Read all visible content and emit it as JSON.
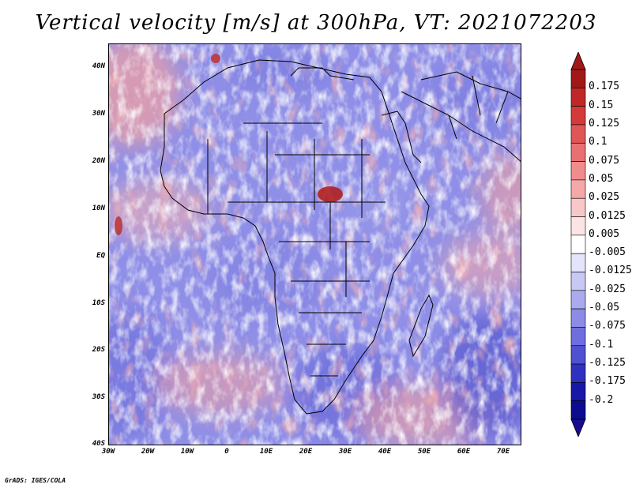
{
  "title": "Vertical velocity [m/s] at 300hPa, VT: 2021072203",
  "footer": "GrADS: IGES/COLA",
  "map": {
    "region": "Africa",
    "lon_range": [
      -30,
      75
    ],
    "lat_range": [
      -40,
      45
    ],
    "lat_labels": [
      "40N",
      "30N",
      "20N",
      "10N",
      "EQ",
      "10S",
      "20S",
      "30S",
      "40S"
    ],
    "lat_values": [
      40,
      30,
      20,
      10,
      0,
      -10,
      -20,
      -30,
      -40
    ],
    "lon_labels": [
      "30W",
      "20W",
      "10W",
      "0",
      "10E",
      "20E",
      "30E",
      "40E",
      "50E",
      "60E",
      "70E"
    ],
    "lon_values": [
      -30,
      -20,
      -10,
      0,
      10,
      20,
      30,
      40,
      50,
      60,
      70
    ]
  },
  "colorbar": {
    "labels": [
      "0.175",
      "0.15",
      "0.125",
      "0.1",
      "0.075",
      "0.05",
      "0.025",
      "0.0125",
      "0.005",
      "-0.005",
      "-0.0125",
      "-0.025",
      "-0.05",
      "-0.075",
      "-0.1",
      "-0.125",
      "-0.175",
      "-0.2"
    ],
    "colors": [
      "#a01818",
      "#c02828",
      "#d43a3a",
      "#e05555",
      "#e87070",
      "#f08c8c",
      "#f4a8a8",
      "#f8c8c8",
      "#fce4e4",
      "#ffffff",
      "#e4e4fa",
      "#c8c8f4",
      "#aaaaee",
      "#8c8ce6",
      "#6e6ede",
      "#5050d2",
      "#3030c0",
      "#1818a8",
      "#0c0c90"
    ],
    "top_color": "#a01818",
    "bottom_color": "#1a0c90"
  },
  "chart_data": {
    "type": "heatmap",
    "title": "Vertical velocity [m/s] at 300hPa, VT: 2021072203",
    "variable": "Vertical velocity",
    "units": "m/s",
    "level": "300hPa",
    "valid_time": "2021072203",
    "xlim": [
      -30,
      75
    ],
    "ylim": [
      -40,
      45
    ],
    "contour_levels": [
      -0.2,
      -0.175,
      -0.125,
      -0.1,
      -0.075,
      -0.05,
      -0.025,
      -0.0125,
      -0.005,
      0.005,
      0.0125,
      0.025,
      0.05,
      0.075,
      0.1,
      0.125,
      0.15,
      0.175
    ]
  }
}
